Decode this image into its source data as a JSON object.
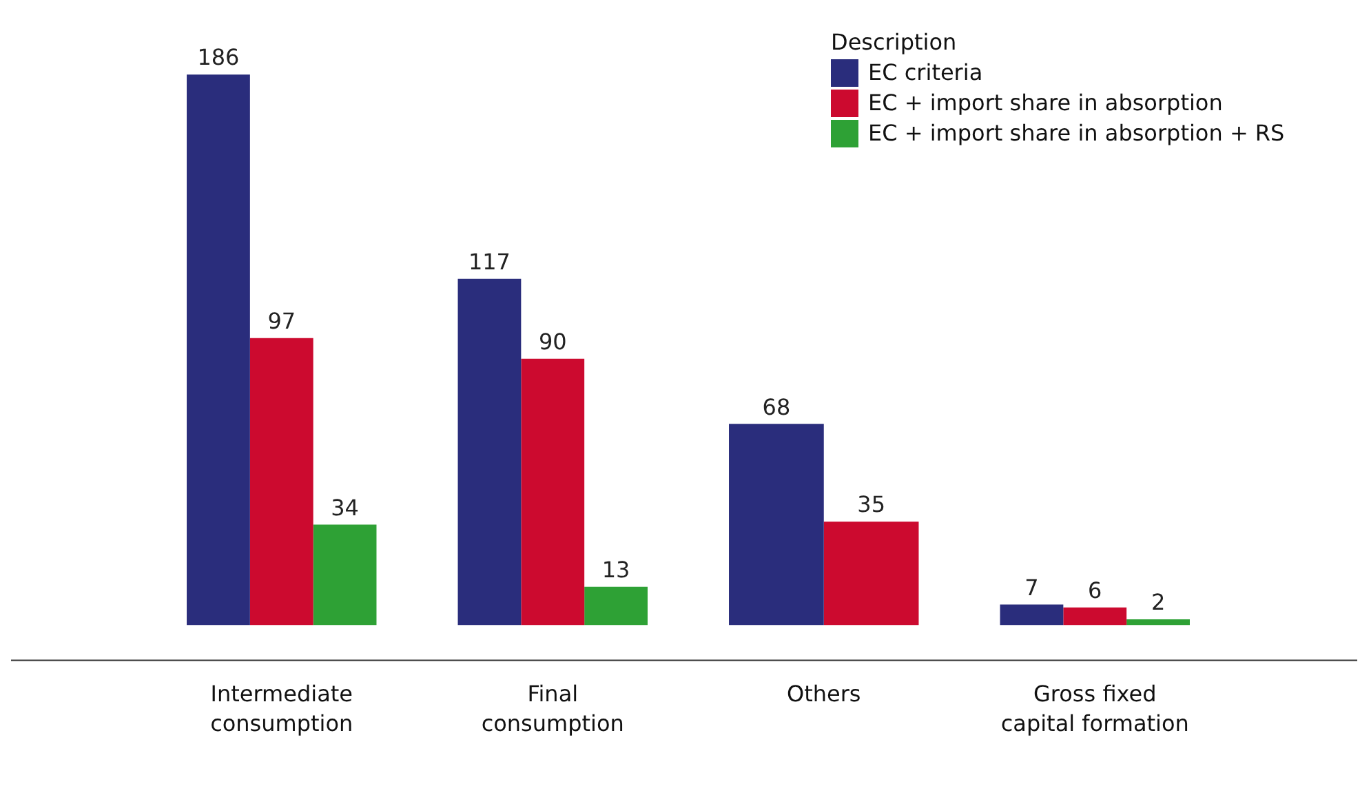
{
  "chart_data": {
    "type": "bar",
    "categories": [
      "Intermediate consumption",
      "Final consumption",
      "Others",
      "Gross fixed capital formation"
    ],
    "series": [
      {
        "name": "EC criteria",
        "color": "#2a2d7c",
        "values": [
          186,
          117,
          68,
          7
        ]
      },
      {
        "name": "EC + import share in absorption",
        "color": "#cc0a2f",
        "values": [
          97,
          90,
          35,
          6
        ]
      },
      {
        "name": "EC + import share in absorption + RS",
        "color": "#2ea135",
        "values": [
          34,
          13,
          null,
          2
        ]
      }
    ],
    "legend_title": "Description",
    "legend": "top right",
    "data_labels": true,
    "grid": false
  }
}
